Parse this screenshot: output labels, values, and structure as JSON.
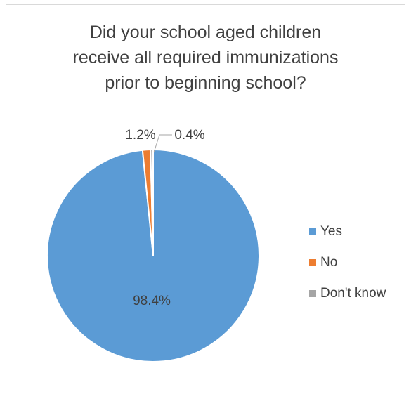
{
  "chart_data": {
    "type": "pie",
    "title_lines": [
      "Did your school aged children",
      "receive all required immunizations",
      "prior to beginning school?"
    ],
    "slices": [
      {
        "label": "Yes",
        "value": 98.4,
        "display": "98.4%",
        "color": "#5B9BD5"
      },
      {
        "label": "No",
        "value": 1.2,
        "display": "1.2%",
        "color": "#ED7D31"
      },
      {
        "label": "Don't know",
        "value": 0.4,
        "display": "0.4%",
        "color": "#A5A5A5"
      }
    ],
    "legend_position": "right"
  }
}
